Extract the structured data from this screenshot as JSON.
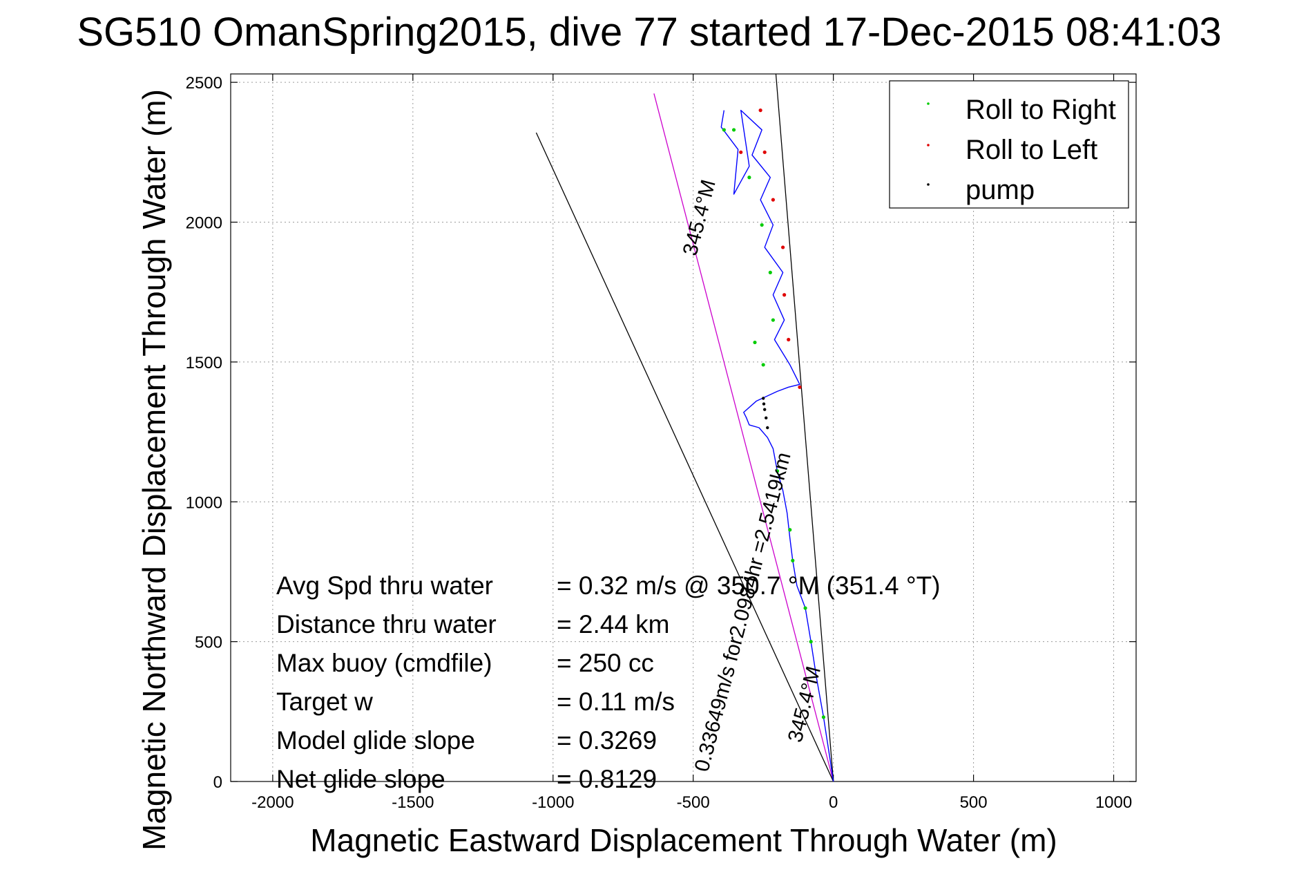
{
  "chart_data": {
    "type": "scatter",
    "title": "SG510 OmanSpring2015, dive 77 started 17-Dec-2015 08:41:03",
    "xlabel": "Magnetic Eastward Displacement Through Water (m)",
    "ylabel": "Magnetic Northward Displacement Through Water (m)",
    "xlim": [
      -2150,
      1080
    ],
    "ylim": [
      0,
      2530
    ],
    "xticks": [
      -2000,
      -1500,
      -1000,
      -500,
      0,
      500,
      1000
    ],
    "yticks": [
      0,
      500,
      1000,
      1500,
      2000,
      2500
    ],
    "grid": true,
    "legend_position": "top-right",
    "legend": [
      {
        "label": "Roll to Right",
        "color": "#00cc00"
      },
      {
        "label": "Roll to Left",
        "color": "#e00000"
      },
      {
        "label": "pump",
        "color": "#000000"
      }
    ],
    "track": {
      "color": "#0000ff",
      "x": [
        0,
        -15,
        -35,
        -60,
        -80,
        -100,
        -130,
        -145,
        -155,
        -165,
        -180,
        -200,
        -215,
        -235,
        -265,
        -300,
        -310,
        -320,
        -275,
        -200,
        -160,
        -120,
        -155,
        -210,
        -175,
        -215,
        -180,
        -245,
        -215,
        -260,
        -225,
        -290,
        -255,
        -330,
        -300,
        -355,
        -340,
        -400,
        -390
      ],
      "y": [
        0,
        100,
        230,
        370,
        500,
        620,
        700,
        790,
        870,
        960,
        1040,
        1110,
        1190,
        1230,
        1265,
        1275,
        1300,
        1320,
        1360,
        1395,
        1410,
        1420,
        1490,
        1580,
        1650,
        1740,
        1820,
        1910,
        1990,
        2080,
        2160,
        2240,
        2330,
        2400,
        2200,
        2100,
        2260,
        2340,
        2400
      ]
    },
    "roll_right_points": {
      "x": [
        -35,
        -80,
        -100,
        -145,
        -155,
        -200,
        -250,
        -280,
        -215,
        -225,
        -255,
        -300,
        -355,
        -390
      ],
      "y": [
        230,
        500,
        620,
        790,
        900,
        1110,
        1490,
        1570,
        1650,
        1820,
        1990,
        2160,
        2330,
        2330
      ]
    },
    "roll_left_points": {
      "x": [
        -120,
        -160,
        -175,
        -180,
        -215,
        -245,
        -260,
        -330
      ],
      "y": [
        1410,
        1580,
        1740,
        1910,
        2080,
        2250,
        2400,
        2250
      ]
    },
    "pump_points": {
      "x": [
        -235,
        -240,
        -245,
        -248,
        -250
      ],
      "y": [
        1265,
        1300,
        1330,
        1350,
        1370
      ]
    },
    "reference_lines": [
      {
        "name": "magenta",
        "color": "#cc00cc",
        "x": [
          0,
          -640
        ],
        "y": [
          0,
          2460
        ]
      },
      {
        "name": "black-left",
        "color": "#000000",
        "x": [
          0,
          -1060
        ],
        "y": [
          0,
          2320
        ]
      },
      {
        "name": "black-right",
        "color": "#000000",
        "x": [
          0,
          -205
        ],
        "y": [
          0,
          2530
        ]
      }
    ],
    "annotations": [
      {
        "text": "345.4°M",
        "x": -455,
        "y": 2010,
        "angle": -75.4
      },
      {
        "text": "0.33649m/s for2.0984hr =2.5419km",
        "x": -300,
        "y": 600,
        "angle": -75.4
      },
      {
        "text": "345.4°M",
        "x": -80,
        "y": 270,
        "angle": -75.4
      }
    ],
    "stats": [
      {
        "label": "Avg Spd thru water",
        "value": "=  0.32 m/s @ 350.7 °M (351.4 °T)"
      },
      {
        "label": "Distance thru water",
        "value": "=  2.44 km"
      },
      {
        "label": "Max buoy (cmdfile)",
        "value": "= 250 cc"
      },
      {
        "label": "Target w",
        "value": "= 0.11 m/s"
      },
      {
        "label": "Model glide slope",
        "value": "= 0.3269"
      },
      {
        "label": "Net glide slope",
        "value": "= 0.8129"
      }
    ]
  }
}
